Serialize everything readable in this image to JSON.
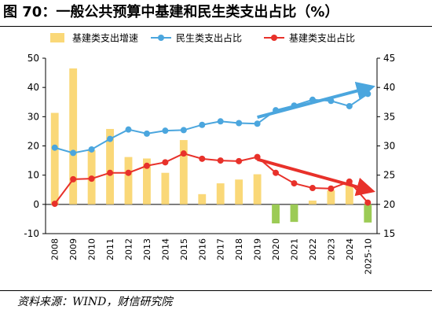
{
  "title": "图 70：一般公共预算中基建和民生类支出占比（%）",
  "source": "资料来源：WIND，财信研究院",
  "chart_data": {
    "type": "bar+line",
    "categories": [
      "2008",
      "2009",
      "2010",
      "2011",
      "2012",
      "2013",
      "2014",
      "2015",
      "2016",
      "2017",
      "2018",
      "2019",
      "2020",
      "2021",
      "2022",
      "2023",
      "2024",
      "2025-10"
    ],
    "series": [
      {
        "name": "基建类支出增速",
        "kind": "bar",
        "axis": "left",
        "color": "#FAD878",
        "values": [
          31.3,
          46.5,
          18.5,
          25.8,
          16.2,
          15.7,
          10.8,
          22.0,
          3.5,
          7.2,
          8.5,
          10.3,
          -6.5,
          -6.0,
          1.3,
          4.8,
          6.5,
          -6.2
        ]
      },
      {
        "name": "民生类支出占比",
        "kind": "line",
        "axis": "right",
        "color": "#4BA6DE",
        "values": [
          29.7,
          28.8,
          29.4,
          31.2,
          32.8,
          32.1,
          32.6,
          32.7,
          33.6,
          34.2,
          33.9,
          33.8,
          36.1,
          36.9,
          37.9,
          37.7,
          36.8,
          38.9
        ]
      },
      {
        "name": "基建类支出占比",
        "kind": "line",
        "axis": "right",
        "color": "#E8312A",
        "values": [
          20.1,
          24.3,
          24.4,
          25.4,
          25.4,
          26.6,
          27.2,
          28.7,
          27.8,
          27.5,
          27.4,
          28.1,
          25.4,
          23.6,
          22.8,
          22.7,
          23.9,
          20.3
        ]
      }
    ],
    "left_axis": {
      "min": -10,
      "max": 50,
      "ticks": [
        "-10",
        "0",
        "10",
        "20",
        "30",
        "40",
        "50"
      ]
    },
    "right_axis": {
      "min": 15,
      "max": 45,
      "ticks": [
        "15",
        "20",
        "25",
        "30",
        "35",
        "40",
        "45"
      ]
    },
    "legend_position": "top",
    "grid": false,
    "annotations": [
      {
        "type": "trend-arrow",
        "color": "#4BA6DE",
        "from": {
          "category": "2019",
          "axis": "right",
          "value": 34.9
        },
        "to": {
          "category": "2025-10",
          "axis": "right",
          "value": 39.9
        }
      },
      {
        "type": "trend-arrow",
        "color": "#E8312A",
        "from": {
          "category": "2019",
          "axis": "right",
          "value": 27.7
        },
        "to": {
          "category": "2025-10",
          "axis": "right",
          "value": 22.5
        }
      }
    ]
  }
}
